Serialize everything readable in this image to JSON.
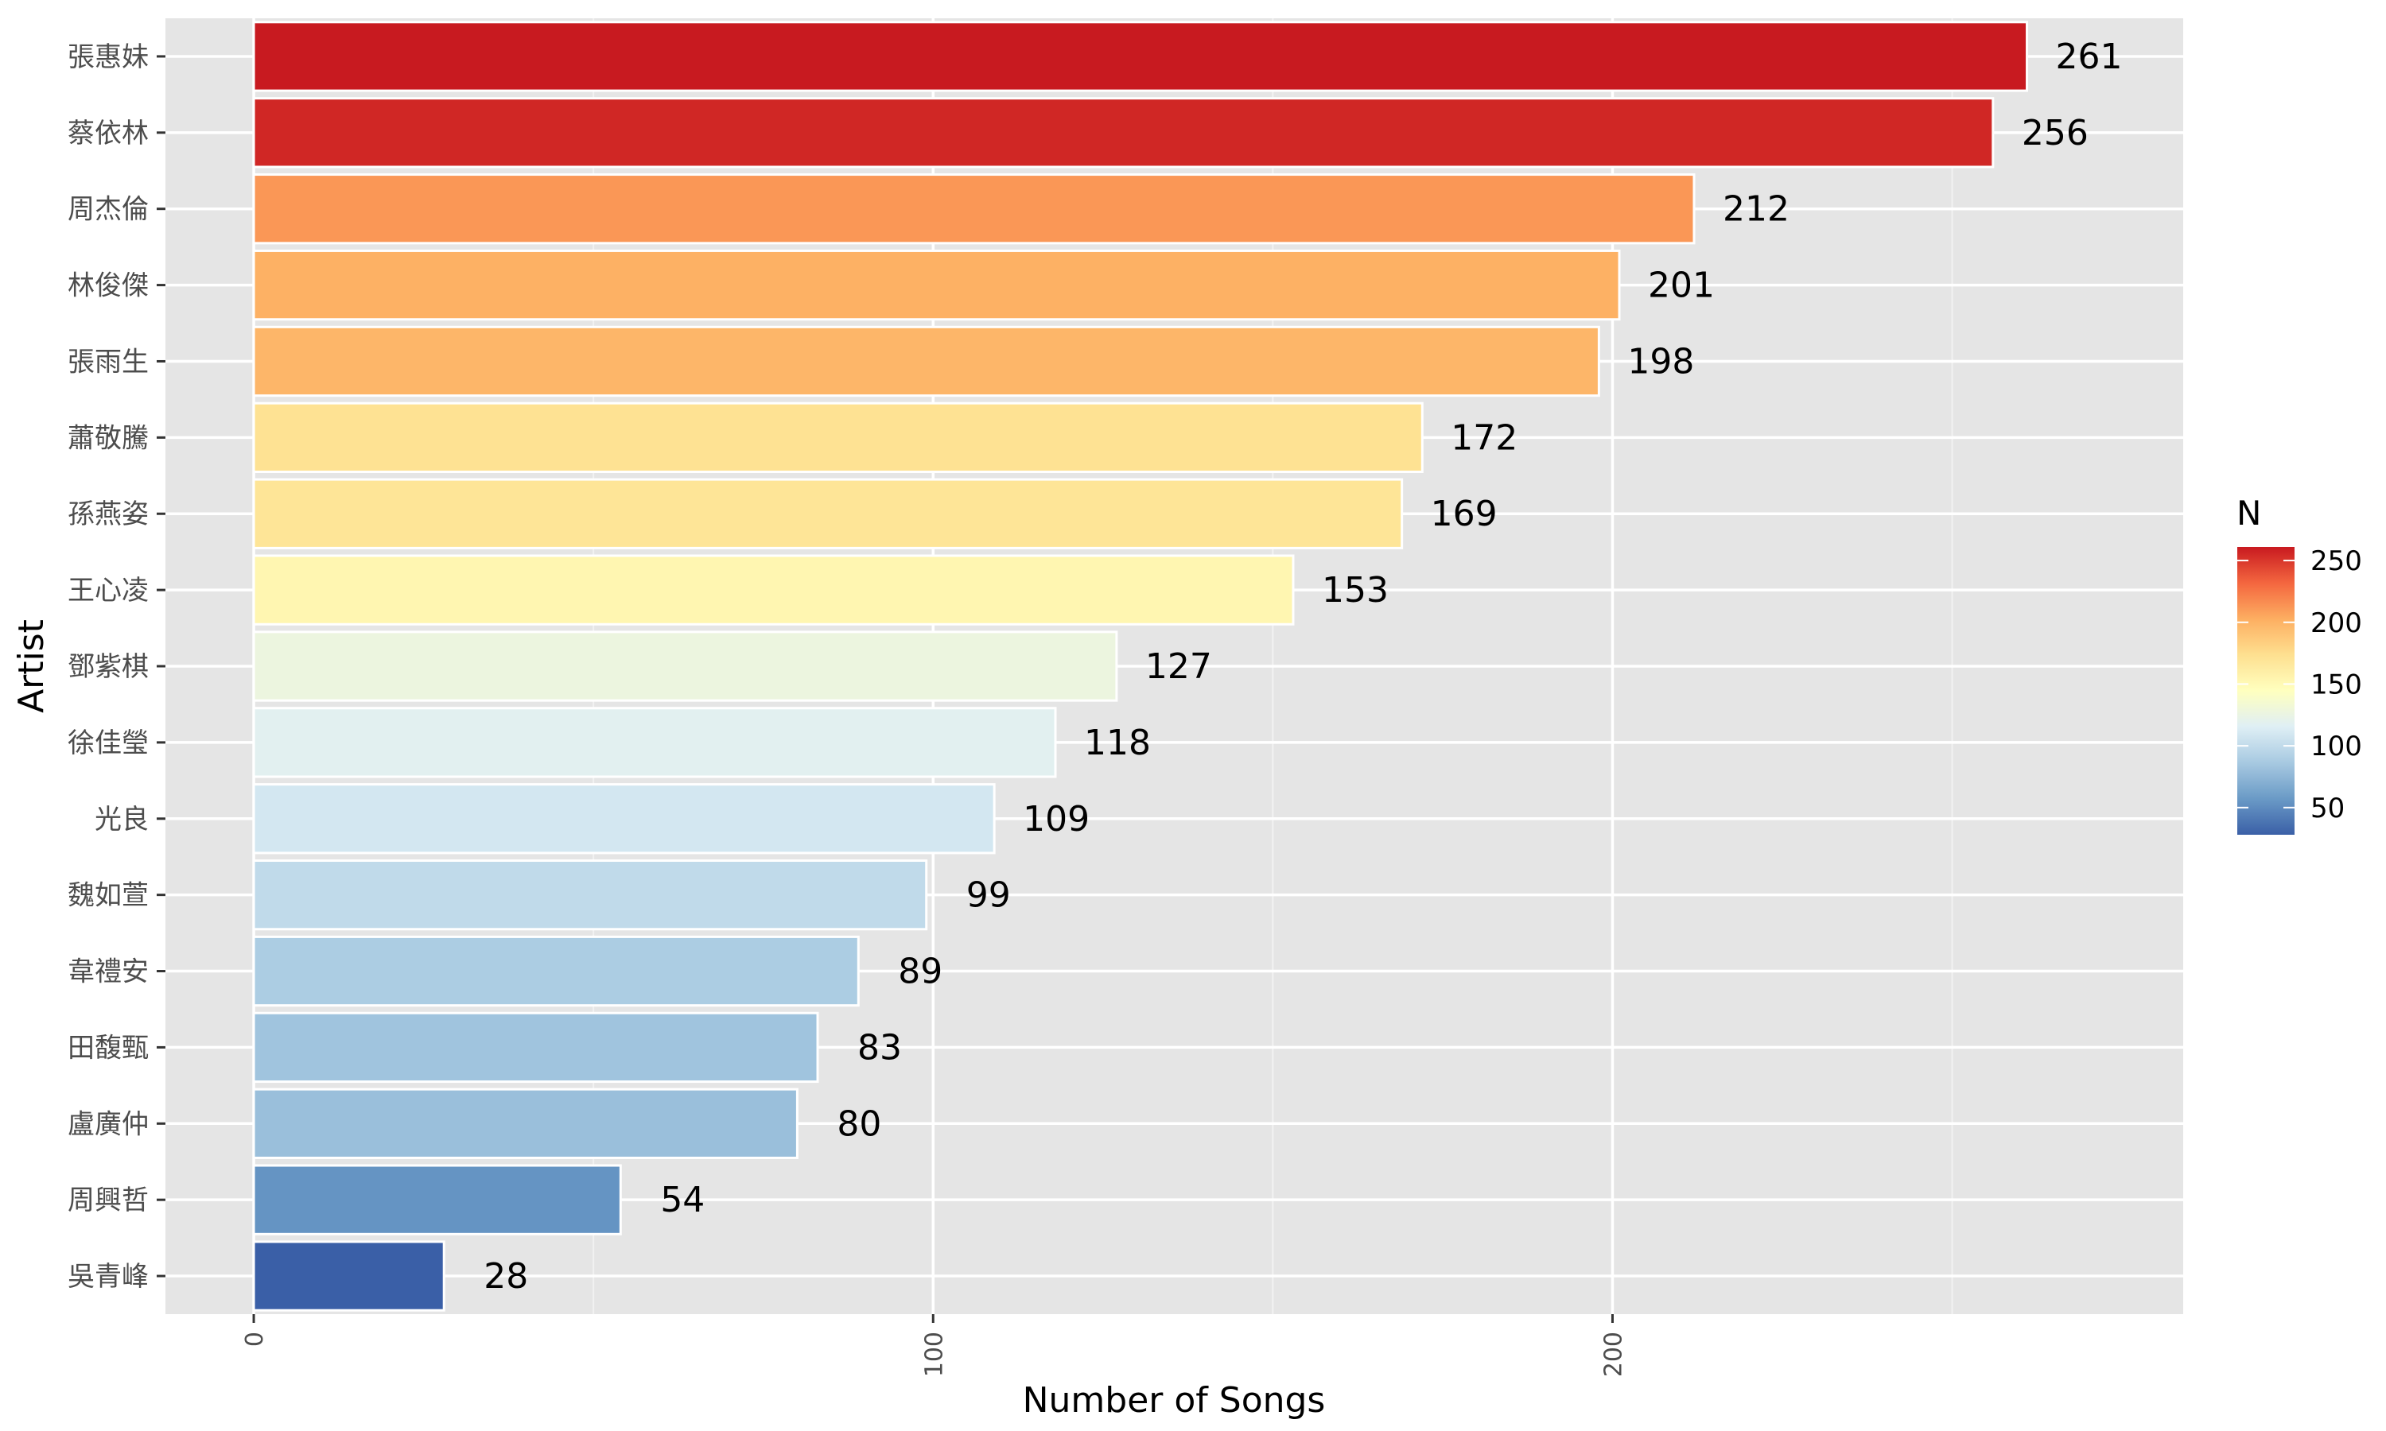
{
  "chart_data": {
    "type": "bar",
    "orientation": "horizontal",
    "xlabel": "Number of Songs",
    "ylabel": "Artist",
    "xlim": [
      -13,
      284
    ],
    "x_ticks": [
      "0",
      "100",
      "200"
    ],
    "grid": true,
    "legend_placement": "right",
    "legend": {
      "title": "N",
      "type": "colorbar",
      "ticks": [
        "50",
        "100",
        "150",
        "200",
        "250"
      ],
      "range": [
        28,
        261
      ],
      "colors": [
        "#3a5fa7",
        "#6a9ac6",
        "#a7c9e1",
        "#dfeff5",
        "#ffffbf",
        "#fee090",
        "#fdae61",
        "#f4663f",
        "#c81a20"
      ]
    },
    "categories": [
      "張惠妹",
      "蔡依林",
      "周杰倫",
      "林俊傑",
      "張雨生",
      "蕭敬騰",
      "孫燕姿",
      "王心凌",
      "鄧紫棋",
      "徐佳瑩",
      "光良",
      "魏如萱",
      "韋禮安",
      "田馥甄",
      "盧廣仲",
      "周興哲",
      "吳青峰"
    ],
    "values": [
      261,
      256,
      212,
      201,
      198,
      172,
      169,
      153,
      127,
      118,
      109,
      99,
      89,
      83,
      80,
      54,
      28
    ],
    "labels": [
      "261",
      "256",
      "212",
      "201",
      "198",
      "172",
      "169",
      "153",
      "127",
      "118",
      "109",
      "99",
      "89",
      "83",
      "80",
      "54",
      "28"
    ]
  }
}
